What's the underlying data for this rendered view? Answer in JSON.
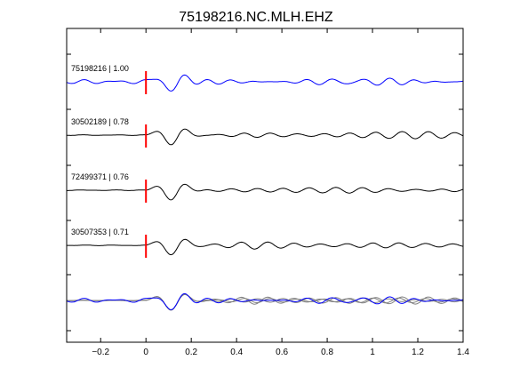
{
  "chart_data": {
    "type": "line",
    "title": "75198216.NC.MLH.EHZ",
    "xlabel": "",
    "ylabel": "",
    "xlim": [
      -0.35,
      1.4
    ],
    "xticks": [
      -0.2,
      0,
      0.2,
      0.4,
      0.6,
      0.8,
      1,
      1.2,
      1.4
    ],
    "xtick_labels": [
      "−0.2",
      "0",
      "0.2",
      "0.4",
      "0.6",
      "0.8",
      "1",
      "1.2",
      "1.4"
    ],
    "grid": false,
    "legend": "none",
    "pick_time": 0,
    "colors": {
      "reference": "#0000ff",
      "trace": "#000000",
      "overlay": "#808080",
      "pick": "#ff0000",
      "axes": "#000000"
    },
    "series": [
      {
        "name": "75198216 | 1.00",
        "event_id": "75198216",
        "correlation": "1.00",
        "role": "reference"
      },
      {
        "name": "30502189 | 0.78",
        "event_id": "30502189",
        "correlation": "0.78",
        "role": "trace"
      },
      {
        "name": "72499371 | 0.76",
        "event_id": "72499371",
        "correlation": "0.76",
        "role": "trace"
      },
      {
        "name": "30507353 | 0.71",
        "event_id": "30507353",
        "correlation": "0.71",
        "role": "trace"
      }
    ],
    "stack_panel": "overlay of all traces"
  }
}
